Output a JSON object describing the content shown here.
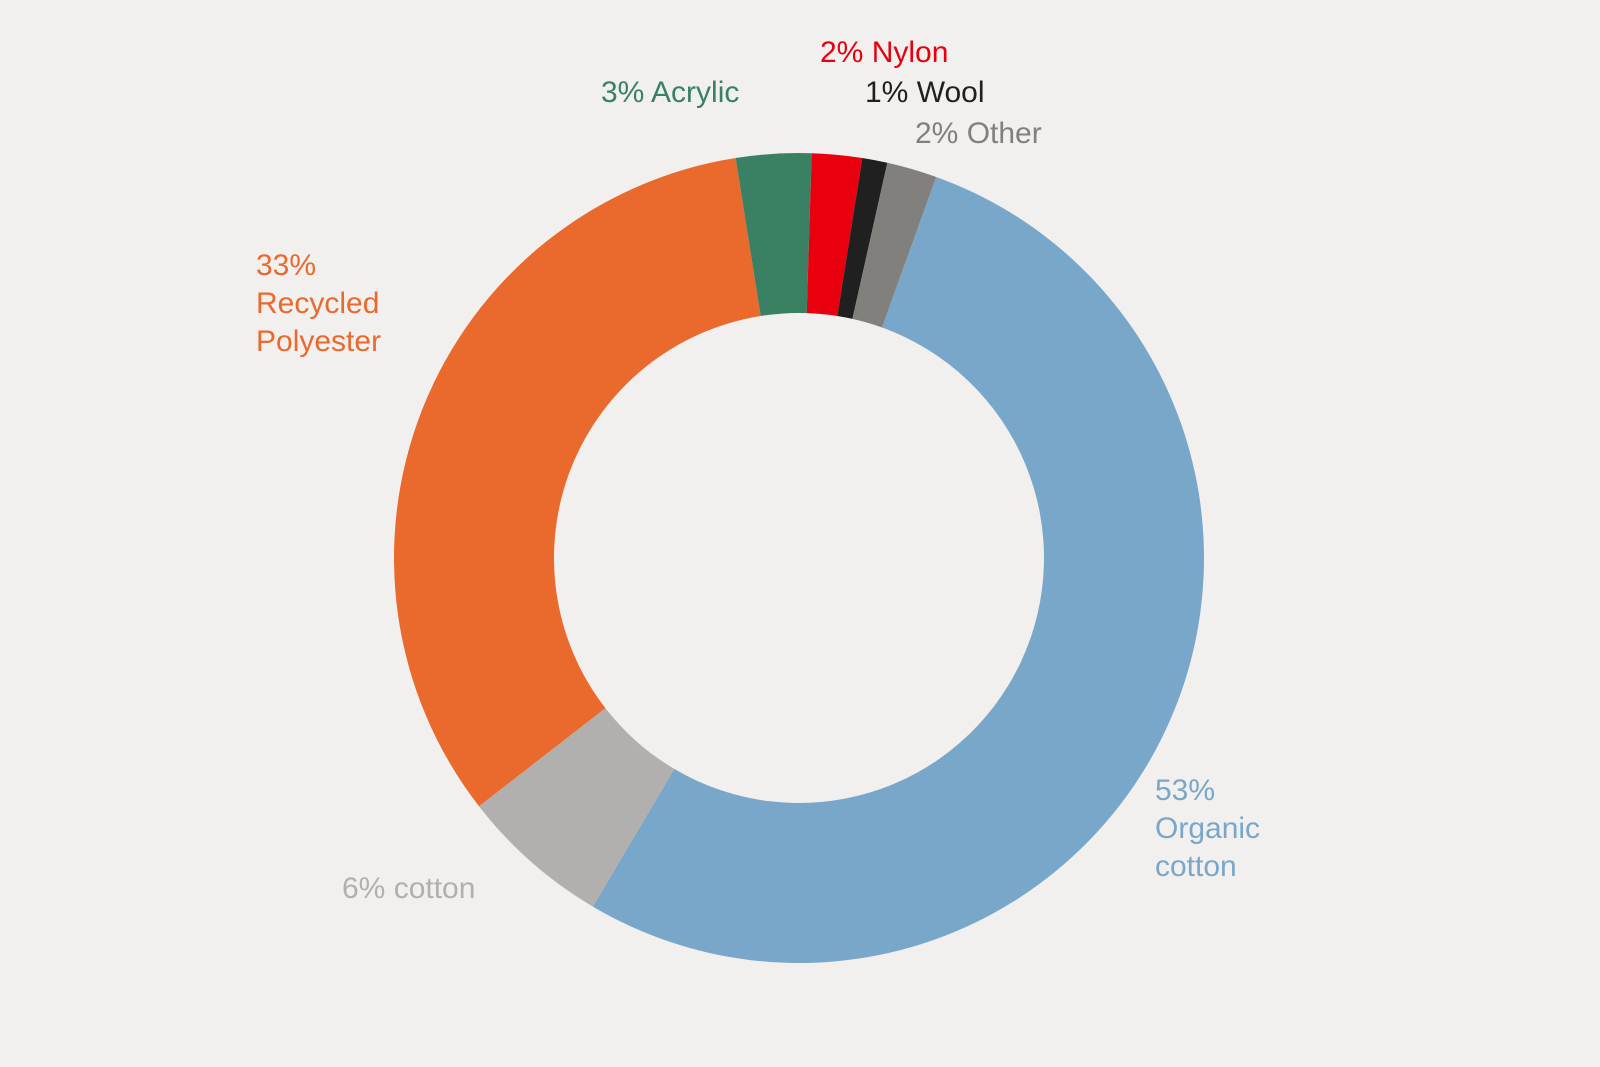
{
  "background": "#f2f0ee",
  "chart_data": {
    "type": "pie",
    "variant": "donut",
    "slices": [
      {
        "id": "organic",
        "value": 53,
        "color": "#79a7c9",
        "label_lines": [
          "53%",
          "Organic",
          "cotton"
        ]
      },
      {
        "id": "cotton",
        "value": 6,
        "color": "#b1b0ae",
        "label_lines": [
          "6% cotton"
        ]
      },
      {
        "id": "recycled",
        "value": 33,
        "color": "#ea692c",
        "label_lines": [
          "33%",
          "Recycled",
          "Polyester"
        ]
      },
      {
        "id": "acrylic",
        "value": 3,
        "color": "#3a8164",
        "label_lines": [
          "3% Acrylic"
        ]
      },
      {
        "id": "nylon",
        "value": 2,
        "color": "#e8000f",
        "label_lines": [
          "2% Nylon"
        ]
      },
      {
        "id": "wool",
        "value": 1,
        "color": "#202020",
        "label_lines": [
          "1% Wool"
        ]
      },
      {
        "id": "other",
        "value": 2,
        "color": "#82807d",
        "label_lines": [
          "2% Other"
        ]
      }
    ]
  }
}
